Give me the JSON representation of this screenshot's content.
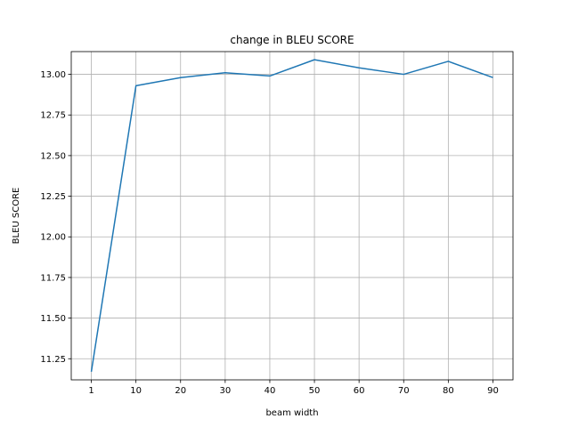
{
  "chart_data": {
    "type": "line",
    "title": "change in BLEU SCORE",
    "xlabel": "beam width",
    "ylabel": "BLEU SCORE",
    "x": [
      "1",
      "10",
      "20",
      "30",
      "40",
      "50",
      "60",
      "70",
      "80",
      "90"
    ],
    "series": [
      {
        "name": "BLEU SCORE",
        "color": "#1f77b4",
        "values": [
          11.17,
          12.93,
          12.98,
          13.01,
          12.99,
          13.09,
          13.04,
          13.0,
          13.08,
          12.98
        ]
      }
    ],
    "ylim": [
      11.12,
      13.14
    ],
    "yticks": [
      11.25,
      11.5,
      11.75,
      12.0,
      12.25,
      12.5,
      12.75,
      13.0
    ],
    "ytick_labels": [
      "11.25",
      "11.50",
      "11.75",
      "12.00",
      "12.25",
      "12.50",
      "12.75",
      "13.00"
    ],
    "grid": true
  }
}
